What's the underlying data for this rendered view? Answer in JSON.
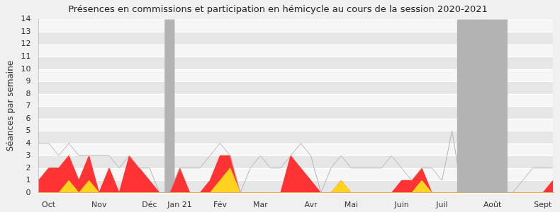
{
  "chart_data": {
    "type": "line",
    "title": "Présences en commissions et participation en hémicycle au cours de la session 2020-2021",
    "y_label": "Séances par semaine",
    "categories": [
      null,
      "Oct",
      null,
      null,
      null,
      null,
      "Nov",
      null,
      null,
      null,
      null,
      "Déc",
      null,
      null,
      "Jan 21",
      null,
      null,
      null,
      "Fév",
      null,
      null,
      null,
      "Mar",
      null,
      null,
      null,
      null,
      "Avr",
      null,
      null,
      null,
      "Mai",
      null,
      null,
      null,
      null,
      "Juin",
      null,
      null,
      null,
      "Juil",
      null,
      null,
      null,
      null,
      "Août",
      null,
      null,
      null,
      null,
      "Sept",
      null
    ],
    "series": [
      {
        "type": "area",
        "color": "#ff3333",
        "values": [
          1,
          2,
          2,
          3,
          1,
          3,
          0,
          2,
          0,
          3,
          2,
          1,
          0,
          0,
          2,
          0,
          0,
          1,
          3,
          3,
          0,
          0,
          0,
          0,
          0,
          3,
          2,
          1,
          0,
          0,
          1,
          0,
          0,
          0,
          0,
          0,
          1,
          1,
          2,
          0,
          0,
          0,
          0,
          0,
          0,
          0,
          0,
          0,
          0,
          0,
          0,
          1
        ]
      },
      {
        "type": "area",
        "color": "#ffd21f",
        "values": [
          0,
          0,
          0,
          1,
          0,
          1,
          0,
          0,
          0,
          0,
          0,
          0,
          0,
          0,
          0,
          0,
          0,
          0,
          1,
          2,
          0,
          0,
          0,
          0,
          0,
          0,
          0,
          0,
          0,
          0,
          1,
          0,
          0,
          0,
          0,
          0,
          0,
          0,
          1,
          0,
          0,
          0,
          0,
          0,
          0,
          0,
          0,
          0,
          0,
          0,
          0,
          0
        ]
      },
      {
        "type": "line",
        "color": "#b4b4b4",
        "values": [
          4,
          4,
          3,
          4,
          3,
          3,
          3,
          3,
          2,
          3,
          2,
          2,
          0,
          0,
          2,
          2,
          2,
          3,
          4,
          3,
          0,
          2,
          3,
          2,
          2,
          3,
          4,
          3,
          0,
          2,
          3,
          2,
          2,
          2,
          2,
          3,
          2,
          1,
          2,
          2,
          1,
          5,
          0,
          0,
          0,
          0,
          0,
          0,
          1,
          2,
          2,
          2
        ]
      }
    ],
    "shaded_ranges": [
      [
        13,
        13
      ],
      [
        42,
        46
      ]
    ],
    "ylim": [
      0,
      14
    ],
    "yticks": [
      0,
      1,
      2,
      3,
      4,
      5,
      6,
      7,
      8,
      9,
      10,
      11,
      12,
      13,
      14
    ],
    "grid": true
  }
}
